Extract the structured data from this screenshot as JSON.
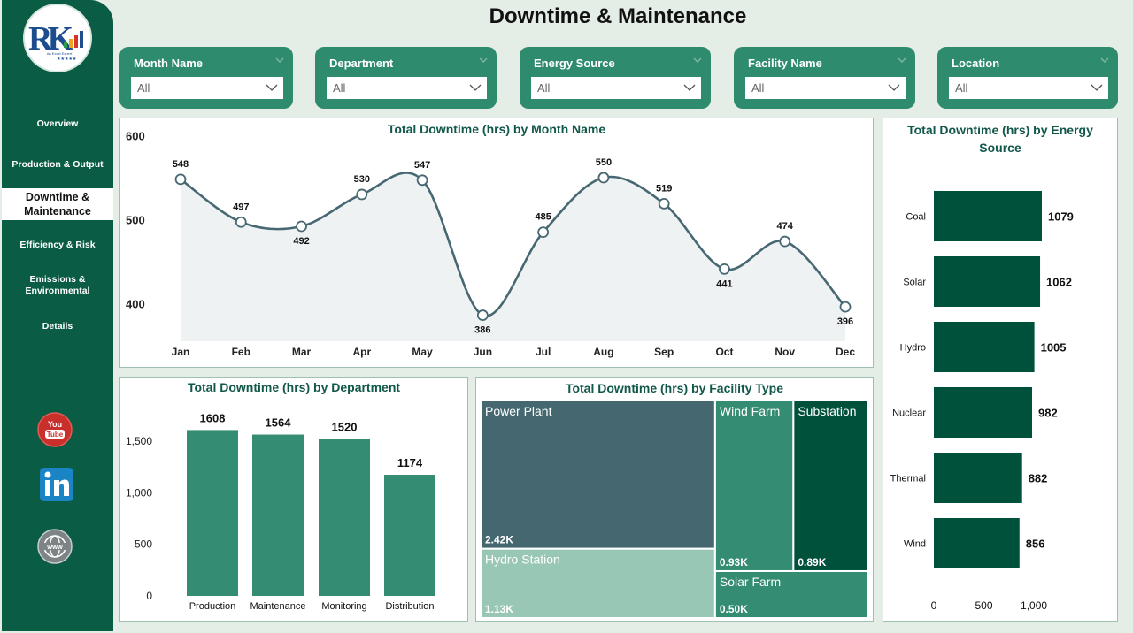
{
  "page": {
    "title": "Downtime & Maintenance"
  },
  "nav": {
    "items": [
      {
        "label": "Overview"
      },
      {
        "label": "Production & Output"
      },
      {
        "label": "Downtime & Maintenance"
      },
      {
        "label": "Efficiency & Risk"
      },
      {
        "label": "Emissions & Environmental"
      },
      {
        "label": "Details"
      }
    ],
    "active": "Downtime & Maintenance",
    "social": [
      "youtube-icon",
      "linkedin-icon",
      "globe-icon"
    ]
  },
  "filters": [
    {
      "label": "Month Name",
      "value": "All"
    },
    {
      "label": "Department",
      "value": "All"
    },
    {
      "label": "Energy Source",
      "value": "All"
    },
    {
      "label": "Facility Name",
      "value": "All"
    },
    {
      "label": "Location",
      "value": "All"
    }
  ],
  "colors": {
    "sidebar": "#0b5c45",
    "slicer": "#2e8b6e",
    "line": "#476873",
    "bar_department": "#348c72",
    "bar_energy": "#00513b"
  },
  "chart_data": [
    {
      "type": "line",
      "title": "Total Downtime (hrs) by Month Name",
      "categories": [
        "Jan",
        "Feb",
        "Mar",
        "Apr",
        "May",
        "Jun",
        "Jul",
        "Aug",
        "Sep",
        "Oct",
        "Nov",
        "Dec"
      ],
      "values": [
        548,
        497,
        492,
        530,
        547,
        386,
        485,
        550,
        519,
        441,
        474,
        396
      ],
      "y_ticks": [
        "400",
        "500",
        "600"
      ],
      "ylim": [
        355,
        590
      ],
      "area_fill": true,
      "data_labels": true
    },
    {
      "type": "bar",
      "title": "Total Downtime (hrs) by Department",
      "categories": [
        "Production",
        "Maintenance",
        "Monitoring",
        "Distribution"
      ],
      "values": [
        1608,
        1564,
        1520,
        1174
      ],
      "value_labels": [
        "1608",
        "1564",
        "1520",
        "1174"
      ],
      "y_ticks": [
        "0",
        "500",
        "1,000",
        "1,500"
      ],
      "ylim": [
        0,
        1800
      ]
    },
    {
      "type": "treemap",
      "title": "Total Downtime (hrs) by Facility Type",
      "items": [
        {
          "name": "Power Plant",
          "value": 2420,
          "label": "2.42K",
          "color": "#446770"
        },
        {
          "name": "Hydro Station",
          "value": 1130,
          "label": "1.13K",
          "color": "#99c7b6"
        },
        {
          "name": "Wind Farm",
          "value": 930,
          "label": "0.93K",
          "color": "#348c72"
        },
        {
          "name": "Substation",
          "value": 890,
          "label": "0.89K",
          "color": "#00513b"
        },
        {
          "name": "Solar Farm",
          "value": 500,
          "label": "0.50K",
          "color": "#348c72"
        }
      ]
    },
    {
      "type": "bar",
      "orientation": "horizontal",
      "title": "Total Downtime (hrs) by Energy Source",
      "categories": [
        "Coal",
        "Solar",
        "Hydro",
        "Nuclear",
        "Thermal",
        "Wind"
      ],
      "values": [
        1079,
        1062,
        1005,
        982,
        882,
        856
      ],
      "x_ticks": [
        "0",
        "500",
        "1,000"
      ],
      "xlim": [
        0,
        1150
      ]
    }
  ]
}
